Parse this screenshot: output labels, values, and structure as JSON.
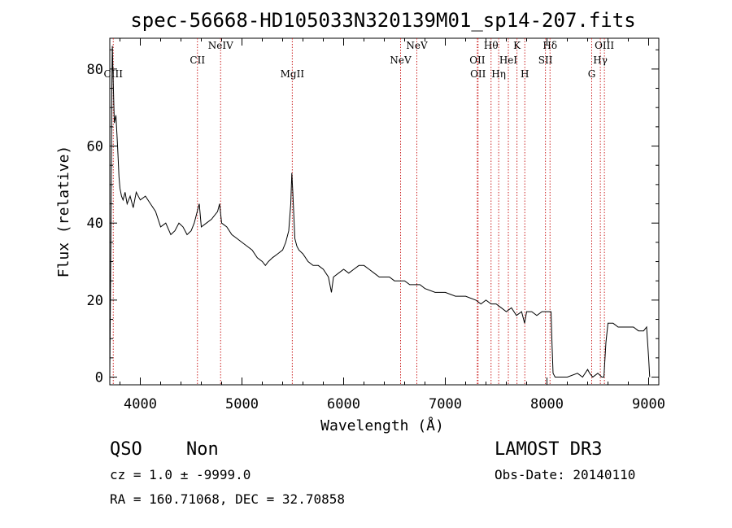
{
  "chart_data": {
    "type": "line",
    "title": "spec-56668-HD105033N320139M01_sp14-207.fits",
    "xlabel": "Wavelength (Å)",
    "ylabel": "Flux (relative)",
    "xlim": [
      3700,
      9100
    ],
    "ylim": [
      -2,
      88
    ],
    "x_ticks": [
      "4000",
      "5000",
      "6000",
      "7000",
      "8000",
      "9000"
    ],
    "y_ticks": [
      "0",
      "20",
      "40",
      "60",
      "80"
    ],
    "grid": false,
    "series": [
      {
        "x": [
          3700,
          3710,
          3720,
          3725,
          3730,
          3738,
          3745,
          3752,
          3760,
          3770,
          3780,
          3790,
          3800,
          3815,
          3830,
          3850,
          3870,
          3900,
          3930,
          3960,
          4000,
          4050,
          4100,
          4150,
          4200,
          4250,
          4300,
          4340,
          4380,
          4420,
          4460,
          4500,
          4530,
          4560,
          4580,
          4600,
          4650,
          4700,
          4760,
          4780,
          4800,
          4850,
          4900,
          4950,
          5000,
          5050,
          5100,
          5150,
          5200,
          5230,
          5260,
          5300,
          5350,
          5400,
          5430,
          5460,
          5480,
          5490,
          5500,
          5520,
          5540,
          5560,
          5600,
          5650,
          5700,
          5750,
          5800,
          5850,
          5880,
          5900,
          5950,
          6000,
          6050,
          6100,
          6150,
          6200,
          6250,
          6300,
          6350,
          6400,
          6450,
          6500,
          6550,
          6600,
          6650,
          6700,
          6750,
          6800,
          6900,
          7000,
          7100,
          7200,
          7300,
          7350,
          7400,
          7450,
          7500,
          7550,
          7600,
          7650,
          7700,
          7750,
          7780,
          7800,
          7850,
          7900,
          7950,
          8000,
          8040,
          8050,
          8060,
          8080,
          8100,
          8200,
          8300,
          8350,
          8400,
          8420,
          8450,
          8500,
          8540,
          8560,
          8580,
          8600,
          8650,
          8700,
          8750,
          8800,
          8850,
          8900,
          8950,
          8980,
          9000,
          9010
        ],
        "y": [
          0,
          34,
          75,
          86,
          80,
          72,
          66,
          67,
          68,
          63,
          58,
          52,
          49,
          47,
          46,
          48,
          45,
          47,
          44,
          48,
          46,
          47,
          45,
          43,
          39,
          40,
          37,
          38,
          40,
          39,
          37,
          38,
          40,
          43,
          45,
          39,
          40,
          41,
          43,
          45,
          40,
          39,
          37,
          36,
          35,
          34,
          33,
          31,
          30,
          29,
          30,
          31,
          32,
          33,
          35,
          38,
          45,
          53,
          48,
          36,
          34,
          33,
          32,
          30,
          29,
          29,
          28,
          26,
          22,
          26,
          27,
          28,
          27,
          28,
          29,
          29,
          28,
          27,
          26,
          26,
          26,
          25,
          25,
          25,
          24,
          24,
          24,
          23,
          22,
          22,
          21,
          21,
          20,
          19,
          20,
          19,
          19,
          18,
          17,
          18,
          16,
          17,
          14,
          17,
          17,
          16,
          17,
          17,
          17,
          8,
          1,
          0,
          0,
          0,
          1,
          0,
          2,
          1,
          0,
          1,
          0,
          0,
          9,
          14,
          14,
          13,
          13,
          13,
          13,
          12,
          12,
          13,
          5,
          0
        ]
      }
    ],
    "annotations": [
      "CIII",
      "CII",
      "NeIV",
      "MgII",
      "NeV",
      "NeV",
      "OII",
      "OII",
      "Hθ",
      "Hη",
      "HeI",
      "K",
      "H",
      "Hδ",
      "SII",
      "G",
      "OIII",
      "Hγ"
    ]
  },
  "footer": {
    "object_class": "QSO",
    "subclass": "Non",
    "cz": "cz = 1.0 ± -9999.0",
    "coords": "RA = 160.71068, DEC =  32.70858",
    "survey": "LAMOST DR3",
    "obs_date": "Obs-Date: 20140110"
  },
  "colors": {
    "line": "#000000",
    "marker_line": "#cc2222"
  }
}
